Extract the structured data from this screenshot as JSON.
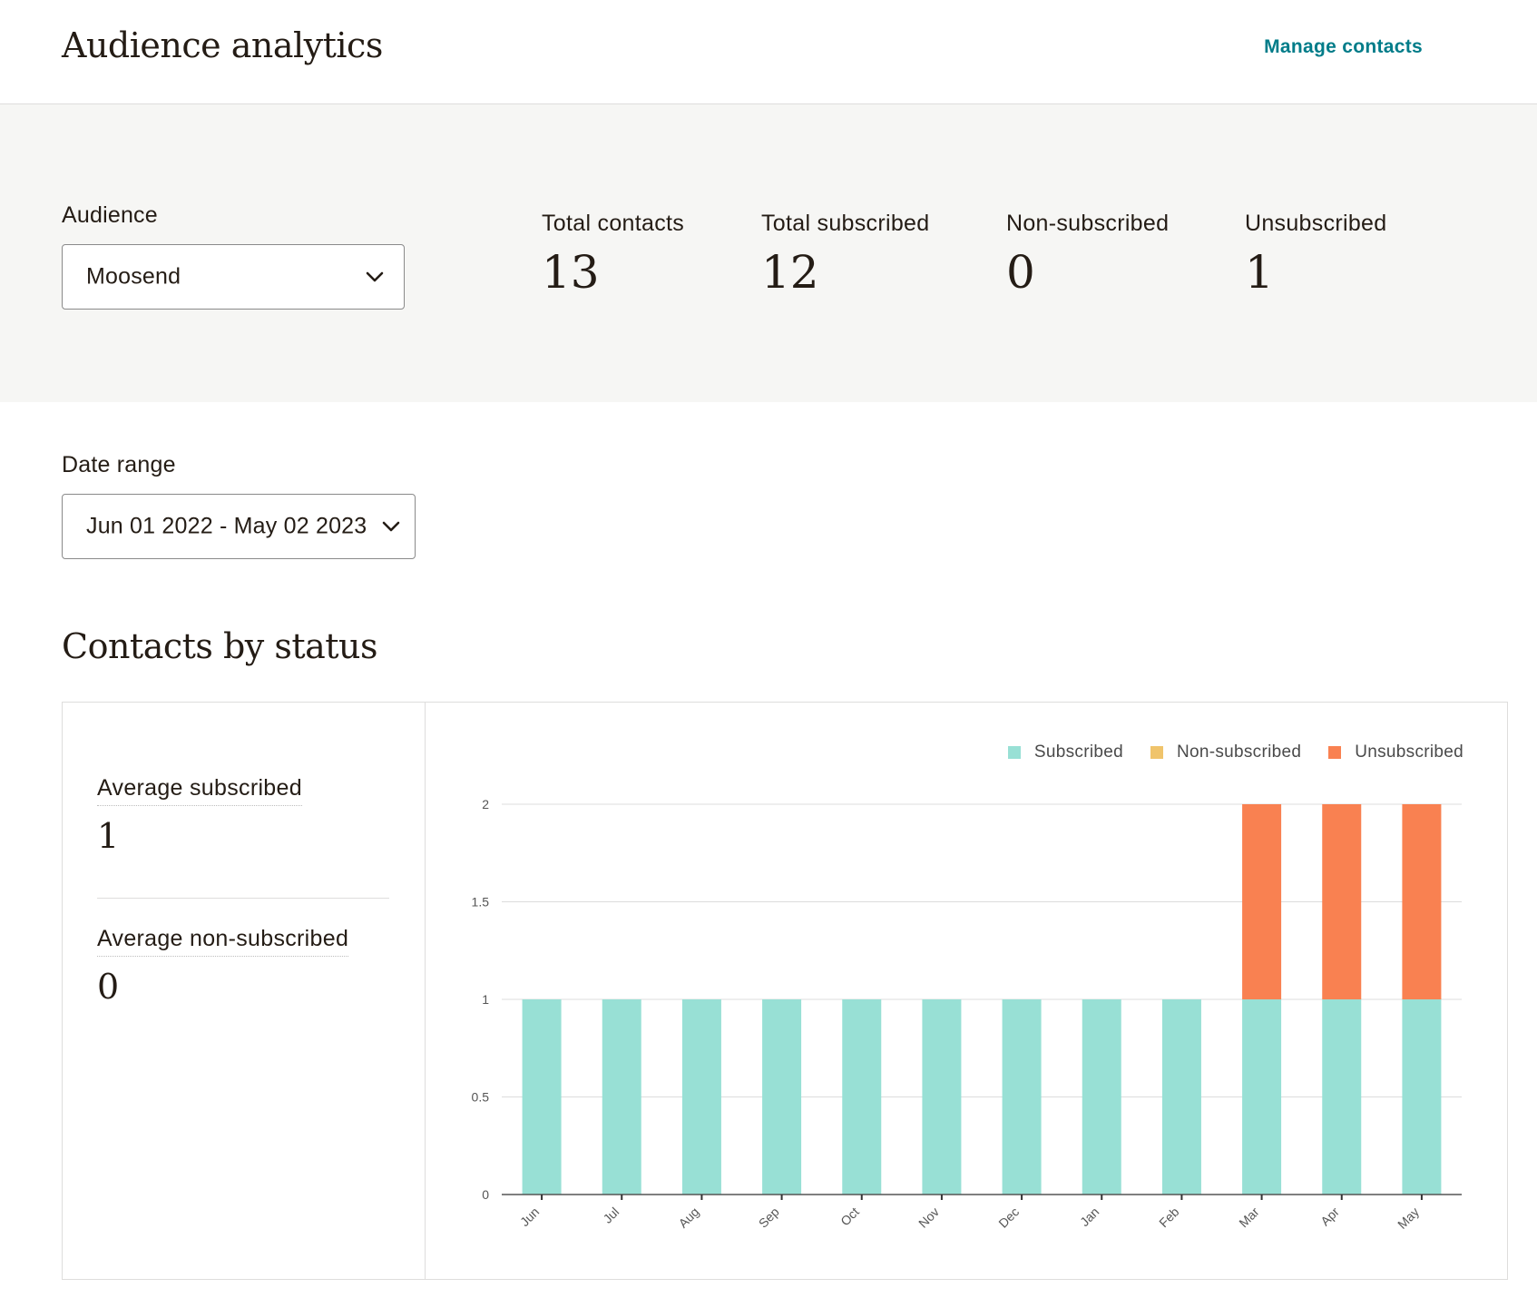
{
  "header": {
    "title": "Audience analytics",
    "manage_link": "Manage contacts"
  },
  "audience": {
    "label": "Audience",
    "selected": "Moosend"
  },
  "stats": [
    {
      "label": "Total contacts",
      "value": "13"
    },
    {
      "label": "Total subscribed",
      "value": "12"
    },
    {
      "label": "Non-subscribed",
      "value": "0"
    },
    {
      "label": "Unsubscribed",
      "value": "1"
    }
  ],
  "date_range": {
    "label": "Date range",
    "selected": "Jun 01 2022 - May 02 2023"
  },
  "section": {
    "title": "Contacts by status"
  },
  "averages": [
    {
      "label": "Average subscribed",
      "value": "1"
    },
    {
      "label": "Average non-subscribed",
      "value": "0"
    }
  ],
  "colors": {
    "subscribed": "#98e0d5",
    "non_subscribed": "#f0c46b",
    "unsubscribed": "#f98151",
    "link": "#007c89"
  },
  "chart_data": {
    "type": "bar",
    "stacked": true,
    "categories": [
      "Jun",
      "Jul",
      "Aug",
      "Sep",
      "Oct",
      "Nov",
      "Dec",
      "Jan",
      "Feb",
      "Mar",
      "Apr",
      "May"
    ],
    "series": [
      {
        "name": "Subscribed",
        "color": "#98e0d5",
        "values": [
          1,
          1,
          1,
          1,
          1,
          1,
          1,
          1,
          1,
          1,
          1,
          1
        ]
      },
      {
        "name": "Non-subscribed",
        "color": "#f0c46b",
        "values": [
          0,
          0,
          0,
          0,
          0,
          0,
          0,
          0,
          0,
          0,
          0,
          0
        ]
      },
      {
        "name": "Unsubscribed",
        "color": "#f98151",
        "values": [
          0,
          0,
          0,
          0,
          0,
          0,
          0,
          0,
          0,
          1,
          1,
          1
        ]
      }
    ],
    "yticks": [
      "0",
      "0.5",
      "1",
      "1.5",
      "2"
    ],
    "ylim": [
      0,
      2
    ],
    "grid": true,
    "legend": "top-right"
  }
}
